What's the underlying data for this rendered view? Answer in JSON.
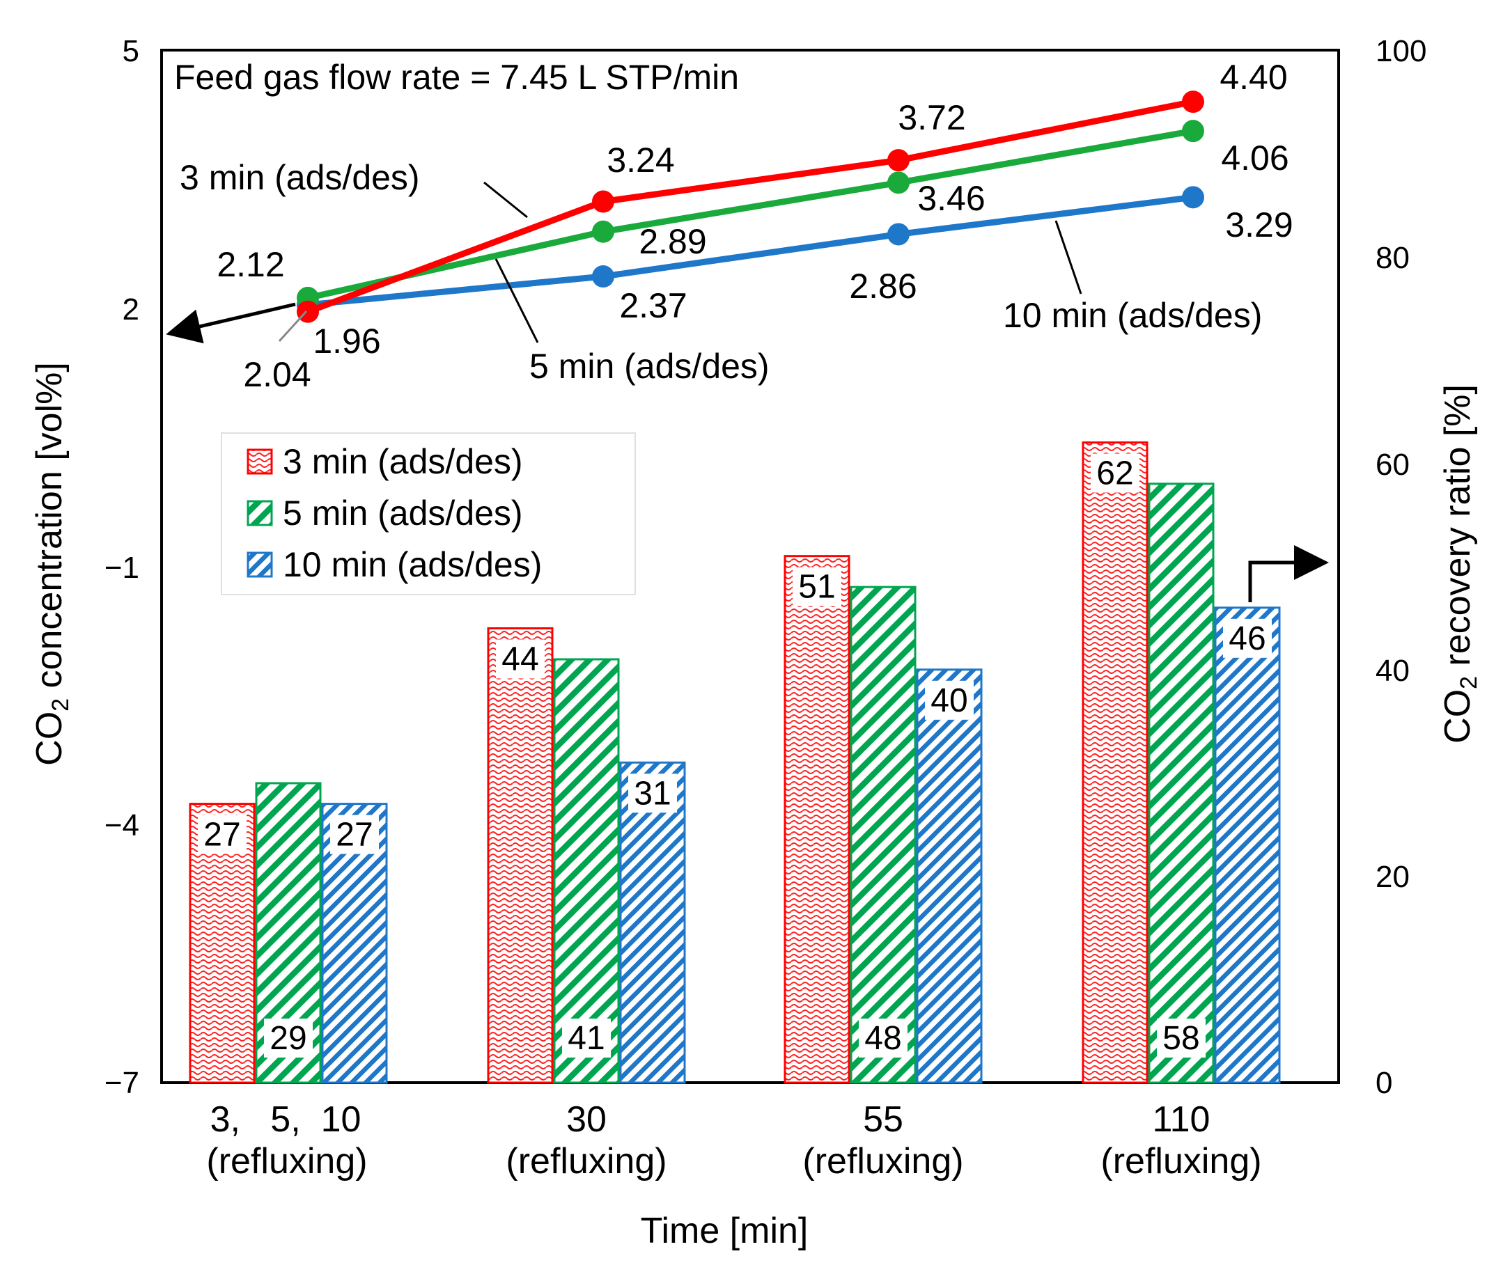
{
  "chart_data": {
    "type": "bar+line",
    "title": "Feed gas flow rate = 7.45 L STP/min",
    "xlabel": "Time [min]",
    "ylabel_left": {
      "main": "CO",
      "sub": "2",
      "rest": " concentration [vol%]"
    },
    "ylabel_right": {
      "main": "CO",
      "sub": "2",
      "rest": " recovery ratio [%]"
    },
    "categories": [
      {
        "line1": "3,   5,  10",
        "line2": "(refluxing)"
      },
      {
        "line1": "30",
        "line2": "(refluxing)"
      },
      {
        "line1": "55",
        "line2": "(refluxing)"
      },
      {
        "line1": "110",
        "line2": "(refluxing)"
      }
    ],
    "y_left_ticks": [
      "5",
      "2",
      "−1",
      "−4",
      "−7"
    ],
    "y_left_range": [
      -7,
      5
    ],
    "y_right_ticks": [
      "100",
      "80",
      "60",
      "40",
      "20",
      "0"
    ],
    "y_right_range": [
      0,
      100
    ],
    "bar_series": [
      {
        "name": "3 min (ads/des)",
        "color": "#ff0000",
        "values": [
          27,
          44,
          51,
          62
        ],
        "labels": [
          "27",
          "44",
          "51",
          "62"
        ]
      },
      {
        "name": "5 min (ads/des)",
        "color": "#00a550",
        "values": [
          29,
          41,
          48,
          58
        ],
        "labels": [
          "29",
          "41",
          "48",
          "58"
        ]
      },
      {
        "name": "10 min (ads/des)",
        "color": "#1f77c9",
        "values": [
          27,
          31,
          40,
          46
        ],
        "labels": [
          "27",
          "31",
          "40",
          "46"
        ]
      }
    ],
    "line_series": [
      {
        "name": "3 min (ads/des)",
        "color": "#ff0000",
        "values": [
          1.96,
          3.24,
          3.72,
          4.4
        ],
        "labels": [
          "1.96",
          "3.24",
          "3.72",
          "4.40"
        ]
      },
      {
        "name": "5 min (ads/des)",
        "color": "#1aaa3c",
        "values": [
          2.12,
          2.89,
          3.46,
          4.06
        ],
        "labels": [
          "2.12",
          "2.89",
          "3.46",
          "4.06"
        ]
      },
      {
        "name": "10 min (ads/des)",
        "color": "#1f77c9",
        "values": [
          2.04,
          2.37,
          2.86,
          3.29
        ],
        "labels": [
          "2.04",
          "2.37",
          "2.86",
          "3.29"
        ]
      }
    ],
    "line_annotations": [
      "3 min (ads/des)",
      "5 min (ads/des)",
      "10 min (ads/des)"
    ],
    "legend": {
      "position": "center-left",
      "entries": [
        "3 min (ads/des)",
        "5 min (ads/des)",
        "10 min (ads/des)"
      ]
    },
    "arrows": {
      "left": "line series read on left axis",
      "right": "bars read on right axis"
    }
  }
}
